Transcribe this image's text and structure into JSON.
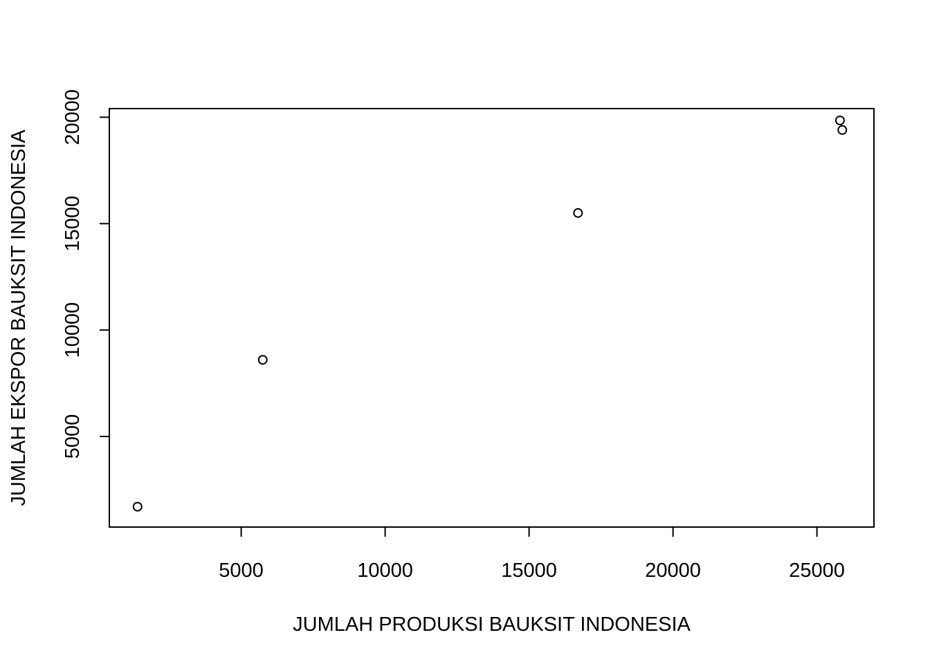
{
  "chart_data": {
    "type": "scatter",
    "title": "",
    "xlabel": "JUMLAH PRODUKSI BAUKSIT INDONESIA",
    "ylabel": "JUMLAH EKSPOR BAUKSIT INDONESIA",
    "xlim": [
      420,
      26980
    ],
    "ylim": [
      744,
      20405
    ],
    "x_ticks": [
      5000,
      10000,
      15000,
      20000,
      25000
    ],
    "y_ticks": [
      5000,
      10000,
      15000,
      20000
    ],
    "x_tick_labels": [
      "5000",
      "10000",
      "15000",
      "20000",
      "25000"
    ],
    "y_tick_labels": [
      "5000",
      "10000",
      "15000",
      "20000"
    ],
    "grid": false,
    "points": [
      {
        "x": 1400,
        "y": 1700
      },
      {
        "x": 5750,
        "y": 8600
      },
      {
        "x": 16700,
        "y": 15500
      },
      {
        "x": 25800,
        "y": 19850
      },
      {
        "x": 25880,
        "y": 19400
      }
    ]
  }
}
